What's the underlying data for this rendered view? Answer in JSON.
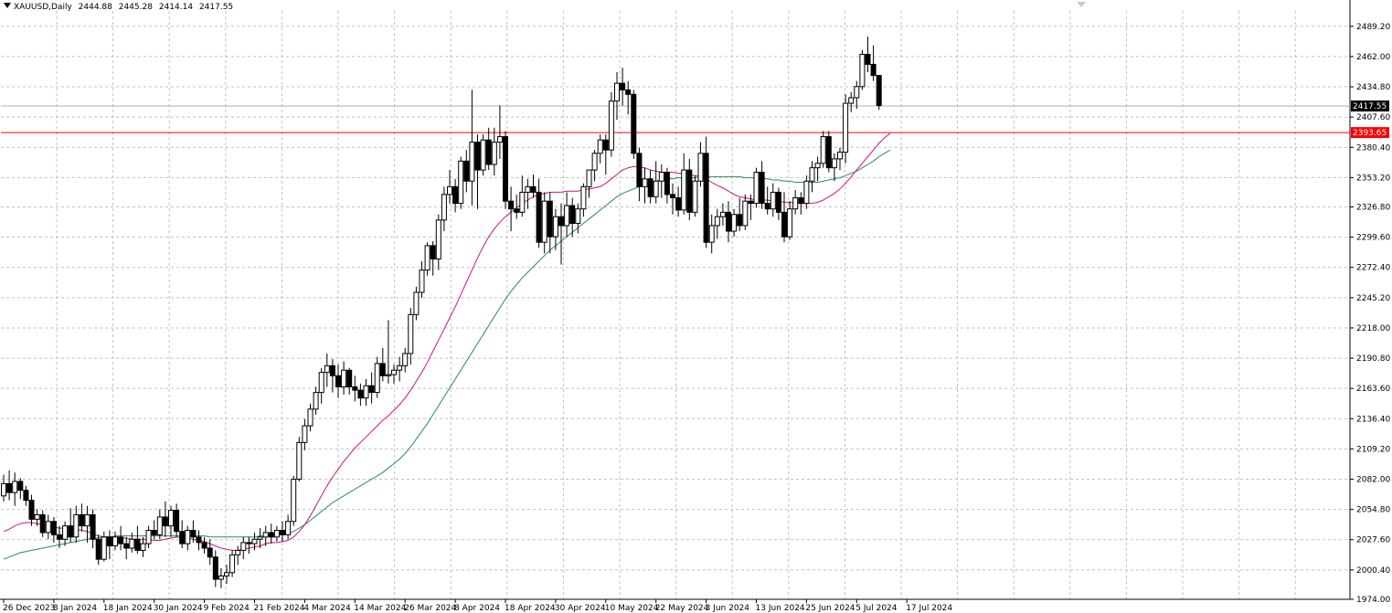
{
  "header": {
    "symbol": "XAUUSD,Daily",
    "open": "2444.88",
    "high": "2445.28",
    "low": "2414.14",
    "close": "2417.55"
  },
  "colors": {
    "grid": "#c0c0c0",
    "candle": "#000000",
    "ma_fast": "#c71585",
    "ma_slow": "#2e8b57",
    "hline": "#ff0000",
    "axis": "#000000"
  },
  "chart_data": {
    "type": "candlestick",
    "ylim": [
      1974.0,
      2503.0
    ],
    "y_ticks": [
      "2489.20",
      "2462.00",
      "2434.80",
      "2407.60",
      "2380.40",
      "2353.20",
      "2326.80",
      "2299.60",
      "2272.40",
      "2245.20",
      "2218.00",
      "2190.80",
      "2163.60",
      "2136.40",
      "2109.20",
      "2082.00",
      "2054.80",
      "2027.60",
      "2000.40",
      "1974.00"
    ],
    "y_tick_values": [
      2489.2,
      2462.0,
      2434.8,
      2407.6,
      2380.4,
      2353.2,
      2326.8,
      2299.6,
      2272.4,
      2245.2,
      2218.0,
      2190.8,
      2163.6,
      2136.4,
      2109.2,
      2082.0,
      2054.8,
      2027.6,
      2000.4,
      1974.0
    ],
    "x_labels": [
      "26 Dec 2023",
      "8 Jan 2024",
      "18 Jan 2024",
      "30 Jan 2024",
      "9 Feb 2024",
      "21 Feb 2024",
      "4 Mar 2024",
      "14 Mar 2024",
      "26 Mar 2024",
      "8 Apr 2024",
      "18 Apr 2024",
      "30 Apr 2024",
      "10 May 2024",
      "22 May 2024",
      "3 Jun 2024",
      "13 Jun 2024",
      "25 Jun 2024",
      "5 Jul 2024",
      "17 Jul 2024"
    ],
    "x_label_index": [
      0,
      9,
      18,
      27,
      36,
      45,
      54,
      63,
      72,
      81,
      90,
      99,
      108,
      117,
      126,
      135,
      144,
      153,
      162
    ],
    "candles": [
      [
        2067,
        2086,
        2062,
        2078
      ],
      [
        2078,
        2090,
        2063,
        2070
      ],
      [
        2070,
        2088,
        2058,
        2080
      ],
      [
        2080,
        2083,
        2064,
        2072
      ],
      [
        2072,
        2076,
        2058,
        2063
      ],
      [
        2063,
        2068,
        2040,
        2046
      ],
      [
        2046,
        2055,
        2040,
        2050
      ],
      [
        2050,
        2054,
        2030,
        2034
      ],
      [
        2034,
        2050,
        2028,
        2044
      ],
      [
        2044,
        2048,
        2025,
        2032
      ],
      [
        2032,
        2040,
        2020,
        2028
      ],
      [
        2028,
        2044,
        2022,
        2040
      ],
      [
        2040,
        2056,
        2025,
        2030
      ],
      [
        2030,
        2058,
        2025,
        2050
      ],
      [
        2050,
        2060,
        2035,
        2040
      ],
      [
        2040,
        2058,
        2025,
        2050
      ],
      [
        2050,
        2055,
        2020,
        2028
      ],
      [
        2028,
        2032,
        2005,
        2010
      ],
      [
        2010,
        2035,
        2008,
        2030
      ],
      [
        2030,
        2036,
        2010,
        2022
      ],
      [
        2022,
        2035,
        2018,
        2030
      ],
      [
        2030,
        2040,
        2018,
        2024
      ],
      [
        2024,
        2030,
        2010,
        2020
      ],
      [
        2020,
        2034,
        2016,
        2028
      ],
      [
        2028,
        2040,
        2015,
        2018
      ],
      [
        2018,
        2030,
        2012,
        2024
      ],
      [
        2024,
        2040,
        2020,
        2036
      ],
      [
        2036,
        2045,
        2028,
        2032
      ],
      [
        2032,
        2055,
        2028,
        2048
      ],
      [
        2048,
        2062,
        2030,
        2040
      ],
      [
        2040,
        2058,
        2030,
        2054
      ],
      [
        2054,
        2060,
        2030,
        2035
      ],
      [
        2035,
        2045,
        2020,
        2024
      ],
      [
        2024,
        2040,
        2018,
        2036
      ],
      [
        2036,
        2045,
        2025,
        2030
      ],
      [
        2030,
        2036,
        2018,
        2025
      ],
      [
        2025,
        2030,
        2015,
        2020
      ],
      [
        2020,
        2028,
        2005,
        2012
      ],
      [
        2012,
        2018,
        1985,
        1992
      ],
      [
        1992,
        2002,
        1984,
        1995
      ],
      [
        1995,
        2005,
        1988,
        1998
      ],
      [
        1998,
        2018,
        1994,
        2014
      ],
      [
        2014,
        2022,
        2005,
        2018
      ],
      [
        2018,
        2030,
        2010,
        2025
      ],
      [
        2025,
        2030,
        2015,
        2024
      ],
      [
        2024,
        2034,
        2018,
        2028
      ],
      [
        2028,
        2038,
        2020,
        2030
      ],
      [
        2030,
        2040,
        2022,
        2034
      ],
      [
        2034,
        2042,
        2024,
        2030
      ],
      [
        2030,
        2040,
        2026,
        2036
      ],
      [
        2036,
        2044,
        2026,
        2032
      ],
      [
        2032,
        2050,
        2028,
        2044
      ],
      [
        2044,
        2085,
        2040,
        2082
      ],
      [
        2082,
        2120,
        2080,
        2115
      ],
      [
        2115,
        2136,
        2108,
        2130
      ],
      [
        2130,
        2150,
        2125,
        2145
      ],
      [
        2145,
        2165,
        2140,
        2160
      ],
      [
        2160,
        2182,
        2150,
        2178
      ],
      [
        2178,
        2195,
        2165,
        2184
      ],
      [
        2184,
        2190,
        2160,
        2175
      ],
      [
        2175,
        2185,
        2155,
        2165
      ],
      [
        2165,
        2188,
        2158,
        2180
      ],
      [
        2180,
        2182,
        2158,
        2165
      ],
      [
        2165,
        2175,
        2152,
        2162
      ],
      [
        2162,
        2168,
        2148,
        2155
      ],
      [
        2155,
        2172,
        2148,
        2166
      ],
      [
        2166,
        2178,
        2150,
        2160
      ],
      [
        2160,
        2192,
        2155,
        2186
      ],
      [
        2186,
        2200,
        2170,
        2175
      ],
      [
        2175,
        2225,
        2168,
        2176
      ],
      [
        2176,
        2185,
        2168,
        2180
      ],
      [
        2180,
        2192,
        2170,
        2184
      ],
      [
        2184,
        2200,
        2178,
        2195
      ],
      [
        2195,
        2236,
        2185,
        2230
      ],
      [
        2230,
        2255,
        2225,
        2250
      ],
      [
        2250,
        2278,
        2245,
        2270
      ],
      [
        2270,
        2295,
        2265,
        2292
      ],
      [
        2292,
        2296,
        2265,
        2280
      ],
      [
        2280,
        2320,
        2270,
        2315
      ],
      [
        2315,
        2345,
        2305,
        2338
      ],
      [
        2338,
        2360,
        2330,
        2345
      ],
      [
        2345,
        2352,
        2322,
        2330
      ],
      [
        2330,
        2372,
        2325,
        2368
      ],
      [
        2368,
        2378,
        2340,
        2350
      ],
      [
        2350,
        2432,
        2328,
        2385
      ],
      [
        2385,
        2392,
        2325,
        2360
      ],
      [
        2360,
        2392,
        2355,
        2387
      ],
      [
        2387,
        2398,
        2360,
        2365
      ],
      [
        2365,
        2398,
        2355,
        2385
      ],
      [
        2385,
        2418,
        2370,
        2390
      ],
      [
        2390,
        2395,
        2325,
        2332
      ],
      [
        2332,
        2345,
        2305,
        2325
      ],
      [
        2325,
        2338,
        2316,
        2322
      ],
      [
        2322,
        2355,
        2318,
        2340
      ],
      [
        2340,
        2352,
        2325,
        2345
      ],
      [
        2345,
        2356,
        2335,
        2340
      ],
      [
        2340,
        2352,
        2290,
        2295
      ],
      [
        2295,
        2340,
        2285,
        2332
      ],
      [
        2332,
        2340,
        2285,
        2300
      ],
      [
        2300,
        2325,
        2288,
        2318
      ],
      [
        2318,
        2330,
        2275,
        2310
      ],
      [
        2310,
        2340,
        2300,
        2328
      ],
      [
        2328,
        2335,
        2300,
        2312
      ],
      [
        2312,
        2330,
        2303,
        2325
      ],
      [
        2325,
        2348,
        2318,
        2345
      ],
      [
        2345,
        2360,
        2335,
        2360
      ],
      [
        2360,
        2378,
        2350,
        2375
      ],
      [
        2375,
        2392,
        2366,
        2387
      ],
      [
        2387,
        2392,
        2356,
        2378
      ],
      [
        2378,
        2430,
        2372,
        2422
      ],
      [
        2422,
        2448,
        2405,
        2438
      ],
      [
        2438,
        2452,
        2418,
        2432
      ],
      [
        2432,
        2440,
        2410,
        2428
      ],
      [
        2428,
        2432,
        2370,
        2375
      ],
      [
        2375,
        2380,
        2332,
        2345
      ],
      [
        2345,
        2362,
        2330,
        2352
      ],
      [
        2352,
        2360,
        2330,
        2336
      ],
      [
        2336,
        2368,
        2330,
        2350
      ],
      [
        2350,
        2365,
        2335,
        2358
      ],
      [
        2358,
        2362,
        2330,
        2338
      ],
      [
        2338,
        2348,
        2320,
        2335
      ],
      [
        2335,
        2345,
        2318,
        2324
      ],
      [
        2324,
        2375,
        2320,
        2360
      ],
      [
        2360,
        2370,
        2315,
        2322
      ],
      [
        2322,
        2355,
        2318,
        2350
      ],
      [
        2350,
        2385,
        2345,
        2375
      ],
      [
        2375,
        2390,
        2290,
        2295
      ],
      [
        2295,
        2320,
        2285,
        2310
      ],
      [
        2310,
        2325,
        2298,
        2318
      ],
      [
        2318,
        2330,
        2310,
        2322
      ],
      [
        2322,
        2332,
        2295,
        2305
      ],
      [
        2305,
        2325,
        2300,
        2320
      ],
      [
        2320,
        2335,
        2305,
        2310
      ],
      [
        2310,
        2338,
        2306,
        2332
      ],
      [
        2332,
        2338,
        2315,
        2330
      ],
      [
        2330,
        2362,
        2326,
        2358
      ],
      [
        2358,
        2368,
        2325,
        2330
      ],
      [
        2330,
        2345,
        2320,
        2325
      ],
      [
        2325,
        2348,
        2318,
        2340
      ],
      [
        2340,
        2344,
        2315,
        2322
      ],
      [
        2322,
        2340,
        2295,
        2300
      ],
      [
        2300,
        2332,
        2297,
        2325
      ],
      [
        2325,
        2342,
        2320,
        2335
      ],
      [
        2335,
        2340,
        2320,
        2330
      ],
      [
        2330,
        2355,
        2325,
        2350
      ],
      [
        2350,
        2368,
        2340,
        2362
      ],
      [
        2362,
        2372,
        2350,
        2366
      ],
      [
        2366,
        2395,
        2362,
        2390
      ],
      [
        2390,
        2395,
        2358,
        2362
      ],
      [
        2362,
        2375,
        2350,
        2370
      ],
      [
        2370,
        2380,
        2360,
        2376
      ],
      [
        2376,
        2428,
        2366,
        2420
      ],
      [
        2420,
        2430,
        2412,
        2425
      ],
      [
        2425,
        2440,
        2415,
        2435
      ],
      [
        2435,
        2468,
        2432,
        2464
      ],
      [
        2464,
        2480,
        2448,
        2455
      ],
      [
        2455,
        2472,
        2440,
        2445
      ],
      [
        2445,
        2445,
        2414,
        2418
      ]
    ],
    "ma_fast": [
      2035,
      2037,
      2040,
      2042,
      2043,
      2043,
      2042,
      2041,
      2040,
      2039,
      2038,
      2038,
      2038,
      2037,
      2036,
      2035,
      2033,
      2031,
      2030,
      2030,
      2029,
      2029,
      2029,
      2028,
      2028,
      2028,
      2028,
      2027,
      2027,
      2028,
      2029,
      2030,
      2029,
      2029,
      2028,
      2027,
      2026,
      2024,
      2022,
      2020,
      2019,
      2018,
      2018,
      2019,
      2020,
      2021,
      2022,
      2024,
      2025,
      2025,
      2026,
      2027,
      2030,
      2035,
      2041,
      2049,
      2058,
      2067,
      2076,
      2084,
      2091,
      2098,
      2104,
      2110,
      2115,
      2120,
      2125,
      2130,
      2135,
      2139,
      2144,
      2149,
      2155,
      2162,
      2170,
      2178,
      2187,
      2197,
      2207,
      2217,
      2227,
      2237,
      2248,
      2259,
      2270,
      2281,
      2291,
      2300,
      2307,
      2313,
      2318,
      2322,
      2326,
      2330,
      2333,
      2336,
      2338,
      2339,
      2340,
      2340,
      2340,
      2341,
      2341,
      2341,
      2342,
      2343,
      2344,
      2345,
      2348,
      2352,
      2356,
      2360,
      2362,
      2363,
      2363,
      2362,
      2360,
      2359,
      2358,
      2358,
      2358,
      2357,
      2357,
      2356,
      2355,
      2354,
      2352,
      2349,
      2346,
      2344,
      2341,
      2338,
      2336,
      2335,
      2334,
      2333,
      2333,
      2333,
      2332,
      2332,
      2331,
      2331,
      2330,
      2330,
      2330,
      2330,
      2331,
      2333,
      2336,
      2339,
      2343,
      2348,
      2354,
      2360,
      2366,
      2372,
      2378,
      2384,
      2389,
      2393
    ],
    "ma_slow": [
      2010,
      2012,
      2014,
      2016,
      2017,
      2018,
      2019,
      2020,
      2021,
      2022,
      2023,
      2024,
      2025,
      2026,
      2027,
      2028,
      2029,
      2029,
      2030,
      2030,
      2031,
      2031,
      2031,
      2031,
      2031,
      2031,
      2031,
      2031,
      2031,
      2031,
      2031,
      2031,
      2031,
      2031,
      2031,
      2031,
      2031,
      2030,
      2030,
      2030,
      2030,
      2030,
      2030,
      2030,
      2030,
      2030,
      2031,
      2031,
      2031,
      2032,
      2032,
      2033,
      2035,
      2038,
      2041,
      2045,
      2049,
      2053,
      2057,
      2061,
      2064,
      2067,
      2070,
      2073,
      2076,
      2079,
      2082,
      2085,
      2088,
      2092,
      2096,
      2100,
      2105,
      2111,
      2118,
      2125,
      2132,
      2140,
      2148,
      2156,
      2164,
      2172,
      2180,
      2188,
      2196,
      2204,
      2212,
      2220,
      2228,
      2236,
      2244,
      2251,
      2257,
      2263,
      2268,
      2273,
      2278,
      2283,
      2288,
      2292,
      2296,
      2300,
      2304,
      2308,
      2312,
      2316,
      2320,
      2324,
      2328,
      2332,
      2336,
      2339,
      2341,
      2343,
      2345,
      2347,
      2349,
      2350,
      2351,
      2352,
      2352,
      2353,
      2353,
      2353,
      2353,
      2354,
      2354,
      2354,
      2354,
      2354,
      2354,
      2354,
      2354,
      2353,
      2353,
      2353,
      2352,
      2352,
      2351,
      2351,
      2350,
      2350,
      2349,
      2349,
      2349,
      2349,
      2349,
      2350,
      2351,
      2352,
      2353,
      2355,
      2357,
      2359,
      2362,
      2365,
      2368,
      2372,
      2375,
      2378
    ],
    "price_lines": [
      {
        "value": 2417.55,
        "label": "2417.55",
        "kind": "bid"
      },
      {
        "value": 2393.65,
        "label": "2393.65",
        "kind": "level"
      }
    ]
  }
}
